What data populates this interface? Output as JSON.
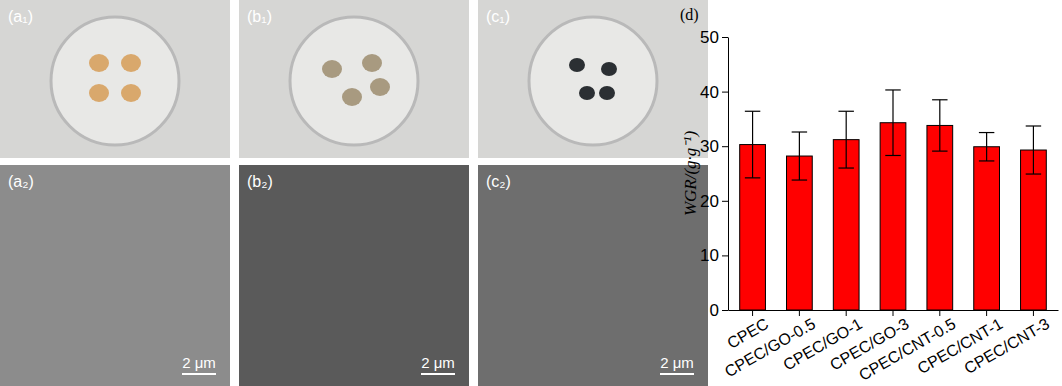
{
  "chart_data": {
    "type": "bar",
    "panel_label": "(d)",
    "y_label": "WGR/(g·g⁻¹)",
    "categories": [
      "CPEC",
      "CPEC/GO-0.5",
      "CPEC/GO-1",
      "CPEC/GO-3",
      "CPEC/CNT-0.5",
      "CPEC/CNT-1",
      "CPEC/CNT-3"
    ],
    "values": [
      30.3,
      28.2,
      31.2,
      34.3,
      33.8,
      29.9,
      29.3
    ],
    "errors": [
      6.1,
      4.4,
      5.2,
      6.0,
      4.7,
      2.6,
      4.4
    ],
    "color": "#ff0000",
    "ylim": [
      0,
      50
    ],
    "yticks": [
      0,
      10,
      20,
      30,
      40,
      50
    ],
    "grid": false
  },
  "images": [
    {
      "label": "(a₁)",
      "kind": "photo",
      "color": "#d9a86c"
    },
    {
      "label": "(b₁)",
      "kind": "photo",
      "color": "#a89a80"
    },
    {
      "label": "(c₁)",
      "kind": "photo",
      "color": "#2b2f33"
    },
    {
      "label": "(a₂)",
      "kind": "sem",
      "scale_bar": "2 μm"
    },
    {
      "label": "(b₂)",
      "kind": "sem",
      "scale_bar": "2 μm"
    },
    {
      "label": "(c₂)",
      "kind": "sem",
      "scale_bar": "2 μm"
    }
  ]
}
